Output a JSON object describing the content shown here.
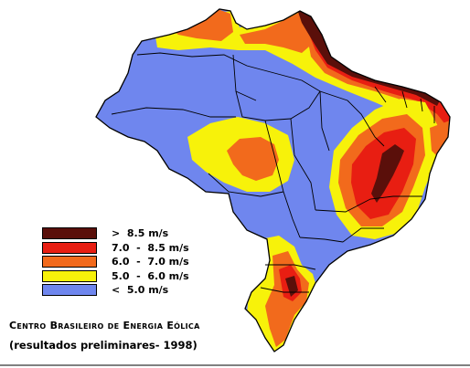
{
  "colors": {
    "above_8_5": "#5a0f0a",
    "from_7_0_to_8_5": "#e81e12",
    "from_6_0_to_7_0": "#f26a1c",
    "from_5_0_to_6_0": "#f7f20a",
    "below_5_0": "#6f86ee",
    "boundary": "#000000",
    "background": "#ffffff"
  },
  "legend": {
    "items": [
      {
        "label": ">  8.5 m/s",
        "color": "#5a0f0a"
      },
      {
        "label": "7.0  -  8.5 m/s",
        "color": "#e81e12"
      },
      {
        "label": "6.0  -  7.0 m/s",
        "color": "#f26a1c"
      },
      {
        "label": "5.0  -  6.0 m/s",
        "color": "#f7f20a"
      },
      {
        "label": "<  5.0 m/s",
        "color": "#6f86ee"
      }
    ]
  },
  "caption": {
    "title": "Centro Brasileiro de Energia Eólica",
    "subtitle": "(resultados preliminares- 1998)"
  }
}
